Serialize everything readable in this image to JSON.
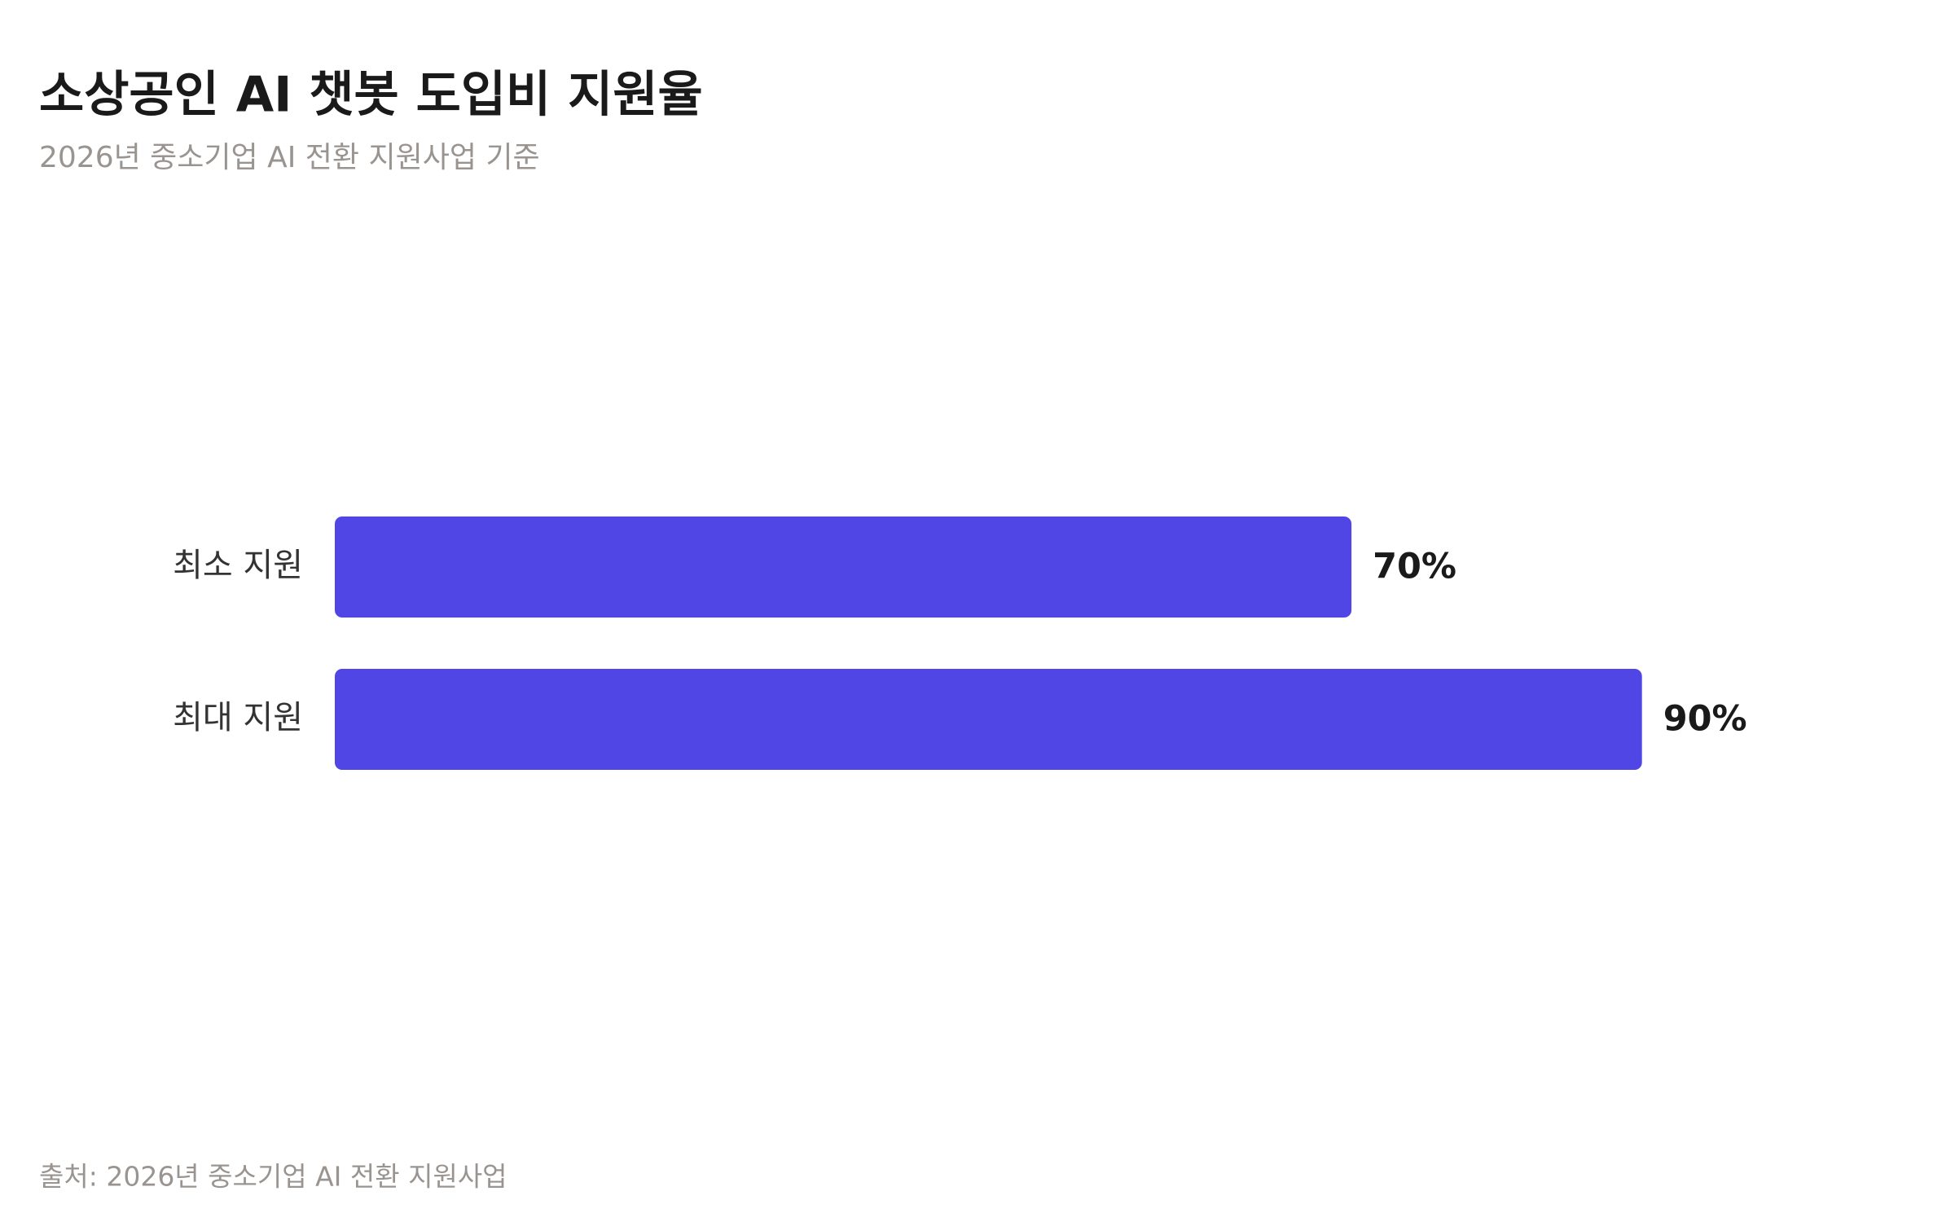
{
  "chart_data": {
    "type": "bar",
    "orientation": "horizontal",
    "title": "소상공인 AI 챗봇 도입비 지원율",
    "subtitle": "2026년 중소기업 AI 전환 지원사업 기준",
    "source": "출처: 2026년 중소기업 AI 전환 지원사업",
    "categories": [
      "최소 지원",
      "최대 지원"
    ],
    "values": [
      70,
      90
    ],
    "value_labels": [
      "70%",
      "90%"
    ],
    "color": "#5046e5",
    "xlim": [
      0,
      100
    ]
  }
}
